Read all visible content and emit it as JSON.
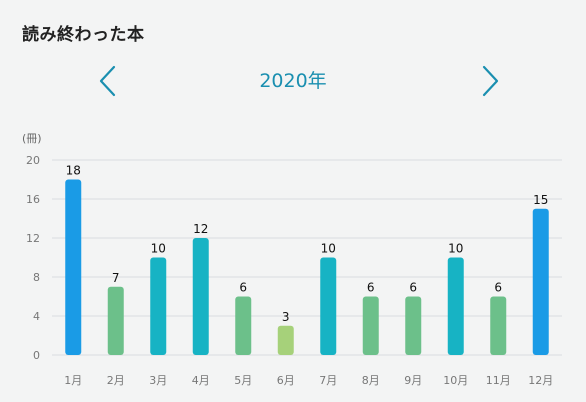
{
  "header": {
    "title": "読み終わった本"
  },
  "nav": {
    "year_label": "2020年",
    "prev_icon": "chevron-left-icon",
    "next_icon": "chevron-right-icon"
  },
  "chart_data": {
    "type": "bar",
    "unit_label": "(冊)",
    "categories": [
      "1月",
      "2月",
      "3月",
      "4月",
      "5月",
      "6月",
      "7月",
      "8月",
      "9月",
      "10月",
      "11月",
      "12月"
    ],
    "values": [
      18,
      7,
      10,
      12,
      6,
      3,
      10,
      6,
      6,
      10,
      6,
      15
    ],
    "ylim": [
      0,
      20
    ],
    "yticks": [
      0,
      4,
      8,
      12,
      16,
      20
    ],
    "grid": true,
    "colors": {
      "high": "#1a9be6",
      "mid": "#17b3c4",
      "low": "#6cc08a",
      "lowest": "#a6d17a",
      "grid": "#d9dcdf",
      "axis_text": "#777777",
      "label_text": "#111111"
    }
  }
}
